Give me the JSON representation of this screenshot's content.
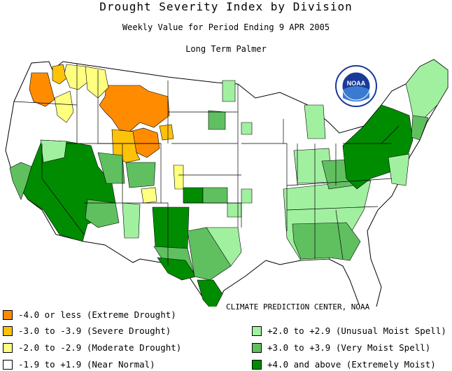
{
  "header": {
    "title": "Drought Severity Index by Division",
    "subtitle": "Weekly Value for Period Ending  9 APR 2005",
    "index_name": "Long Term Palmer"
  },
  "logo": {
    "text": "NOAA"
  },
  "credit": "CLIMATE PREDICTION CENTER, NOAA",
  "colors": {
    "extreme_drought": "#ff8c00",
    "severe_drought": "#ffc20a",
    "moderate_drought": "#ffff80",
    "near_normal": "#ffffff",
    "unusual_moist": "#a0f0a0",
    "very_moist": "#60c060",
    "extremely_moist": "#008c00"
  },
  "legend": {
    "left": [
      {
        "label": "-4.0 or less (Extreme Drought)",
        "color": "#ff8c00"
      },
      {
        "label": "-3.0 to -3.9 (Severe Drought)",
        "color": "#ffc20a"
      },
      {
        "label": "-2.0 to -2.9 (Moderate Drought)",
        "color": "#ffff80"
      },
      {
        "label": "-1.9 to +1.9 (Near Normal)",
        "color": "#ffffff"
      }
    ],
    "right": [
      {
        "label": "+2.0 to +2.9 (Unusual Moist Spell)",
        "color": "#a0f0a0"
      },
      {
        "label": "+3.0 to +3.9 (Very Moist Spell)",
        "color": "#60c060"
      },
      {
        "label": "+4.0 and above (Extremely Moist)",
        "color": "#008c00"
      }
    ]
  }
}
